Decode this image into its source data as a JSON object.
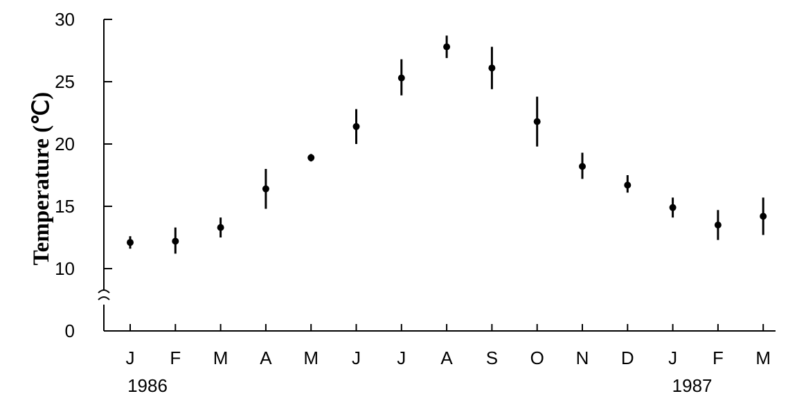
{
  "chart_data": {
    "type": "scatter",
    "title": "",
    "xlabel": "",
    "ylabel": "Temperature (℃)",
    "ylim": [
      0,
      30
    ],
    "axis_break": [
      0,
      10
    ],
    "y_ticks": [
      "30",
      "25",
      "20",
      "15",
      "10",
      "0"
    ],
    "y_tick_values": [
      30,
      25,
      20,
      15,
      10,
      0
    ],
    "categories": [
      "J",
      "F",
      "M",
      "A",
      "M",
      "J",
      "J",
      "A",
      "S",
      "O",
      "N",
      "D",
      "J",
      "F",
      "M"
    ],
    "year_labels": [
      "1986",
      "1987"
    ],
    "year_label_category_index": [
      0,
      12
    ],
    "series": [
      {
        "values": [
          12.1,
          12.2,
          13.3,
          16.4,
          18.9,
          21.4,
          25.3,
          27.8,
          26.1,
          21.8,
          18.2,
          16.7,
          14.9,
          13.5,
          14.2
        ],
        "error_low": [
          11.6,
          11.2,
          12.5,
          14.8,
          18.6,
          20.0,
          23.9,
          26.9,
          24.4,
          19.8,
          17.2,
          16.1,
          14.1,
          12.3,
          12.7
        ],
        "error_high": [
          12.6,
          13.3,
          14.1,
          18.0,
          19.2,
          22.8,
          26.8,
          28.7,
          27.8,
          23.8,
          19.3,
          17.5,
          15.7,
          14.7,
          15.7
        ]
      }
    ],
    "grid": false,
    "legend": "none"
  }
}
